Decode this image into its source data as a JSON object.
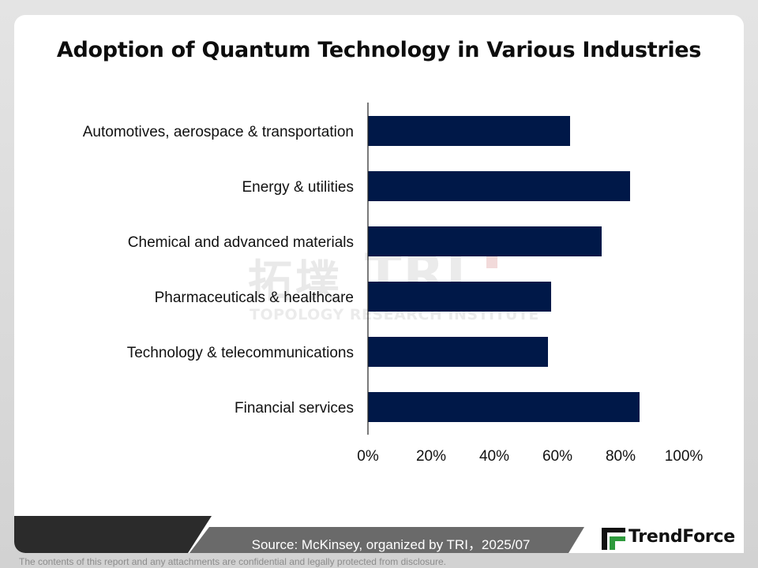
{
  "chart_data": {
    "type": "bar",
    "orientation": "horizontal",
    "title": "Adoption of Quantum Technology in Various Industries",
    "categories": [
      "Automotives, aerospace & transportation",
      "Energy & utilities",
      "Chemical and advanced materials",
      "Pharmaceuticals & healthcare",
      "Technology & telecommunications",
      "Financial services"
    ],
    "values": [
      64,
      83,
      74,
      58,
      57,
      86
    ],
    "xlim": [
      0,
      100
    ],
    "xticks": [
      "0%",
      "20%",
      "40%",
      "60%",
      "80%",
      "100%"
    ],
    "bar_color": "#001848",
    "grid": false,
    "legend": "none"
  },
  "watermark": {
    "cjk": "拓墣",
    "tri": "TRI",
    "subtitle": "TOPOLOGY RESEARCH INSTITUTE"
  },
  "footer": {
    "source": "Source: McKinsey, organized by TRI，2025/07",
    "disclaimer": "The contents of this report and any attachments are confidential and legally protected from disclosure.",
    "brand": "TrendForce"
  },
  "colors": {
    "accent_red": "#b32020",
    "footer_dark": "#2b2b2b",
    "footer_gray": "#6a6a6a"
  }
}
